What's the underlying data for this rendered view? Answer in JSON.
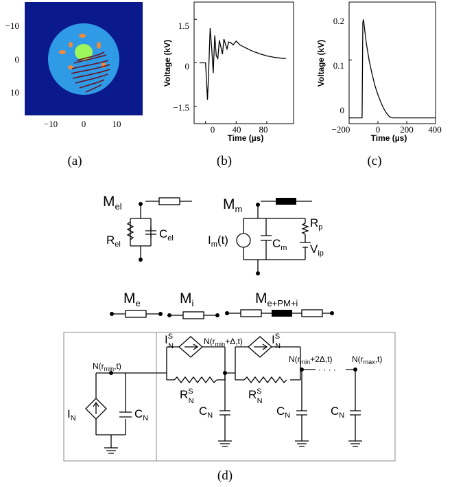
{
  "captions": {
    "a": "(a)",
    "b": "(b)",
    "c": "(c)",
    "d": "(d)"
  },
  "panel_a": {
    "yticks": [
      "−10",
      "0",
      "10"
    ],
    "xticks": [
      "−10",
      "0",
      "10"
    ],
    "colors": {
      "background": "#0a1a8c",
      "cell": "#2f9be6",
      "nucleus": "#9cf55a",
      "organelle": "#f08a3c",
      "mitochondria": "#6b1020"
    }
  },
  "panel_b": {
    "ylabel": "Voltage (kV)",
    "xlabel": "Time (µs)",
    "yticks": [
      "1.5",
      "0",
      "−1.5"
    ],
    "xticks": [
      "0",
      "40",
      "80"
    ]
  },
  "panel_c": {
    "ylabel": "Voltage (kV)",
    "xlabel": "Time (µs)",
    "yticks": [
      "0.2",
      "0.1",
      "0"
    ],
    "xticks": [
      "−200",
      "0",
      "200",
      "400"
    ]
  },
  "chart_data": [
    {
      "type": "line",
      "xlabel": "Time (µs)",
      "ylabel": "Voltage (kV)",
      "xlim": [
        -15,
        115
      ],
      "ylim": [
        -2.1,
        2.1
      ],
      "x": [
        -8,
        0,
        1,
        2.5,
        4,
        6,
        8,
        10,
        12,
        14,
        16,
        18,
        20,
        22,
        24,
        26,
        28,
        30,
        33,
        36,
        40,
        45,
        50,
        60,
        70,
        80,
        90,
        100,
        105
      ],
      "y": [
        0,
        0,
        -0.5,
        -1.28,
        -0.3,
        1.2,
        0.5,
        -0.35,
        0.95,
        0.25,
        0.15,
        0.78,
        0.55,
        0.3,
        0.82,
        0.65,
        0.48,
        0.72,
        0.7,
        0.62,
        0.75,
        0.62,
        0.55,
        0.42,
        0.32,
        0.24,
        0.19,
        0.16,
        0.15
      ]
    },
    {
      "type": "line",
      "xlabel": "Time (µs)",
      "ylabel": "Voltage (kV)",
      "xlim": [
        -200,
        400
      ],
      "ylim": [
        -0.01,
        0.2
      ],
      "x": [
        -200,
        -110,
        -105,
        -100,
        -90,
        -80,
        -60,
        -40,
        -20,
        0,
        20,
        40,
        60,
        80,
        100,
        200,
        300,
        400
      ],
      "y": [
        0.0,
        0.0,
        0.165,
        0.17,
        0.148,
        0.128,
        0.098,
        0.075,
        0.055,
        0.04,
        0.027,
        0.016,
        0.008,
        0.002,
        0.0,
        0.0,
        0.0,
        0.0
      ]
    }
  ],
  "panel_d": {
    "top": {
      "M_el": "M",
      "M_el_sub": "el",
      "R_el": "R",
      "R_el_sub": "el",
      "C_el": "C",
      "C_el_sub": "el",
      "M_m": "M",
      "M_m_sub": "m",
      "I_m": "I",
      "I_m_sub": "m",
      "I_m_tail": "(t)",
      "C_m": "C",
      "C_m_sub": "m",
      "R_p": "R",
      "R_p_sub": "p",
      "V_ip": "V",
      "V_ip_sub": "ip"
    },
    "middle": {
      "M_e": "M",
      "M_e_sub": "e",
      "M_i": "M",
      "M_i_sub": "i",
      "M_epmi": "M",
      "M_epmi_sub": "e+PM+i"
    },
    "bottom": {
      "node1": "N(r",
      "node1_sub": "min",
      "node1_tail": ",t)",
      "node2": "N(r",
      "node2_sub": "min",
      "node2_tail": "+Δ,t)",
      "node3": "N(r",
      "node3_sub": "min",
      "node3_tail": "+2Δ,t)",
      "node4": "N(r",
      "node4_sub": "max",
      "node4_tail": ",t)",
      "ellipsis": "· · · ·",
      "IN": "I",
      "IN_sub": "N",
      "CN": "C",
      "CN_sub": "N",
      "ISN": "I",
      "ISN_sup": "S",
      "ISN_sub": "N",
      "RSN": "R",
      "RSN_sup": "S",
      "RSN_sub": "N"
    }
  }
}
